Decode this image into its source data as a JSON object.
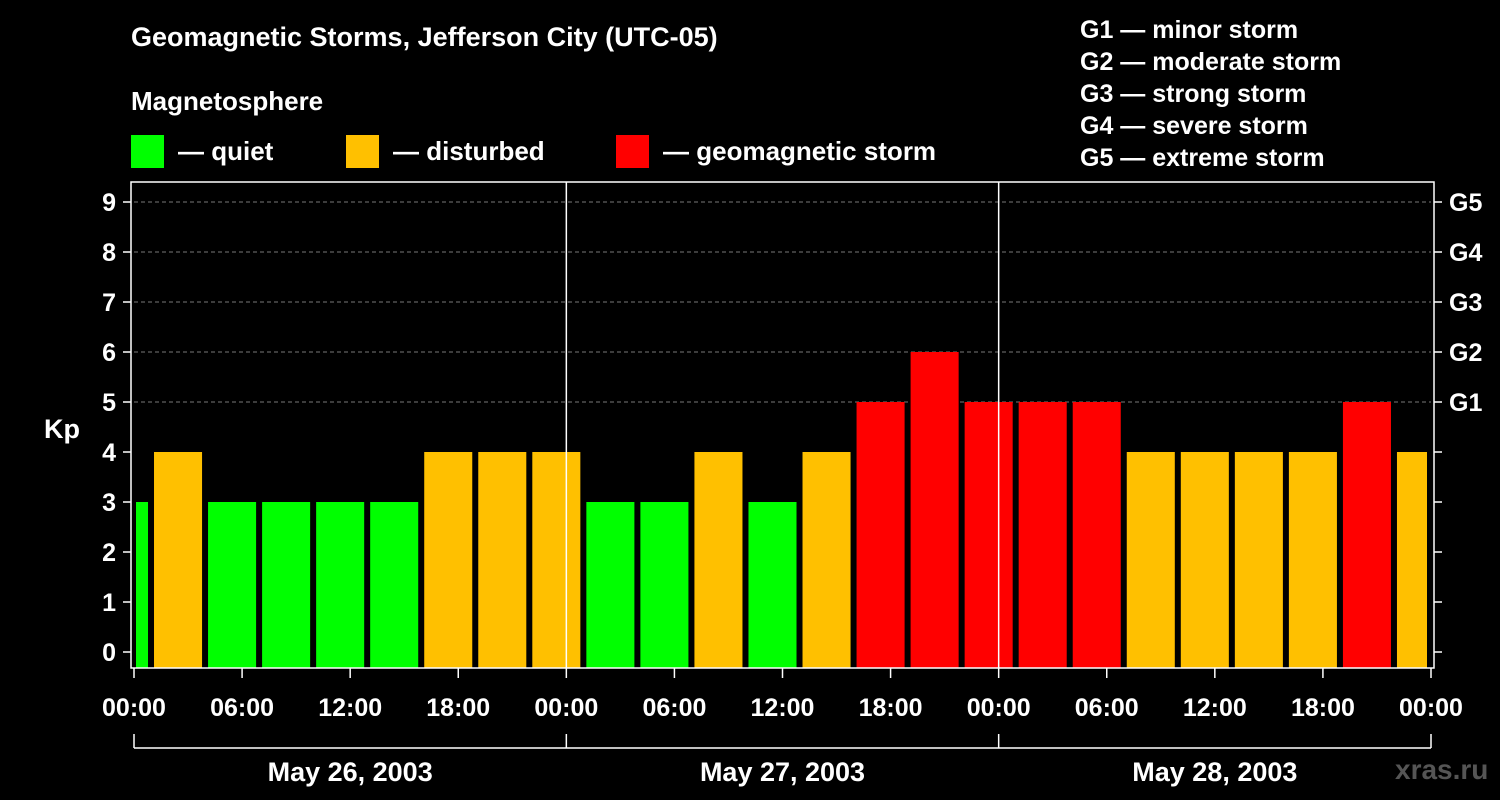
{
  "title": "Geomagnetic Storms, Jefferson City (UTC-05)",
  "subtitle": "Magnetosphere",
  "legend": [
    {
      "label": "— quiet",
      "color": "#00ff00"
    },
    {
      "label": "— disturbed",
      "color": "#ffc000"
    },
    {
      "label": "— geomagnetic storm",
      "color": "#ff0000"
    }
  ],
  "g_levels": [
    "G1 — minor storm",
    "G2 — moderate storm",
    "G3 — strong storm",
    "G4 — severe storm",
    "G5 — extreme storm"
  ],
  "watermark": "xras.ru",
  "chart_data": {
    "type": "bar",
    "ylabel": "Kp",
    "ylim": [
      0,
      9
    ],
    "y_ticks": [
      "0",
      "1",
      "2",
      "3",
      "4",
      "5",
      "6",
      "7",
      "8",
      "9"
    ],
    "right_ticks": [
      {
        "kp": 5,
        "label": "G1"
      },
      {
        "kp": 6,
        "label": "G2"
      },
      {
        "kp": 7,
        "label": "G3"
      },
      {
        "kp": 8,
        "label": "G4"
      },
      {
        "kp": 9,
        "label": "G5"
      }
    ],
    "x_tick_labels": [
      "00:00",
      "06:00",
      "12:00",
      "18:00",
      "00:00",
      "06:00",
      "12:00",
      "18:00",
      "00:00",
      "06:00",
      "12:00",
      "18:00",
      "00:00"
    ],
    "days": [
      "May 26, 2003",
      "May 27, 2003",
      "May 28, 2003"
    ],
    "grid": "horizontal dashed",
    "colors": {
      "quiet": "#00ff00",
      "disturbed": "#ffc000",
      "storm": "#ff0000"
    },
    "bars": [
      {
        "start": "May 26 00:00",
        "end": "May 26 01:00",
        "kp": 3
      },
      {
        "start": "May 26 01:00",
        "end": "May 26 04:00",
        "kp": 4
      },
      {
        "start": "May 26 04:00",
        "end": "May 26 07:00",
        "kp": 3
      },
      {
        "start": "May 26 07:00",
        "end": "May 26 10:00",
        "kp": 3
      },
      {
        "start": "May 26 10:00",
        "end": "May 26 13:00",
        "kp": 3
      },
      {
        "start": "May 26 13:00",
        "end": "May 26 16:00",
        "kp": 3
      },
      {
        "start": "May 26 16:00",
        "end": "May 26 19:00",
        "kp": 4
      },
      {
        "start": "May 26 19:00",
        "end": "May 26 22:00",
        "kp": 4
      },
      {
        "start": "May 26 22:00",
        "end": "May 27 01:00",
        "kp": 4
      },
      {
        "start": "May 27 01:00",
        "end": "May 27 04:00",
        "kp": 3
      },
      {
        "start": "May 27 04:00",
        "end": "May 27 07:00",
        "kp": 3
      },
      {
        "start": "May 27 07:00",
        "end": "May 27 10:00",
        "kp": 4
      },
      {
        "start": "May 27 10:00",
        "end": "May 27 13:00",
        "kp": 3
      },
      {
        "start": "May 27 13:00",
        "end": "May 27 16:00",
        "kp": 4
      },
      {
        "start": "May 27 16:00",
        "end": "May 27 19:00",
        "kp": 5
      },
      {
        "start": "May 27 19:00",
        "end": "May 27 22:00",
        "kp": 6
      },
      {
        "start": "May 27 22:00",
        "end": "May 28 01:00",
        "kp": 5
      },
      {
        "start": "May 28 01:00",
        "end": "May 28 04:00",
        "kp": 5
      },
      {
        "start": "May 28 04:00",
        "end": "May 28 07:00",
        "kp": 5
      },
      {
        "start": "May 28 07:00",
        "end": "May 28 10:00",
        "kp": 4
      },
      {
        "start": "May 28 10:00",
        "end": "May 28 13:00",
        "kp": 4
      },
      {
        "start": "May 28 13:00",
        "end": "May 28 16:00",
        "kp": 4
      },
      {
        "start": "May 28 16:00",
        "end": "May 28 19:00",
        "kp": 4
      },
      {
        "start": "May 28 19:00",
        "end": "May 28 22:00",
        "kp": 5
      },
      {
        "start": "May 28 22:00",
        "end": "May 29 00:00",
        "kp": 4
      }
    ]
  }
}
